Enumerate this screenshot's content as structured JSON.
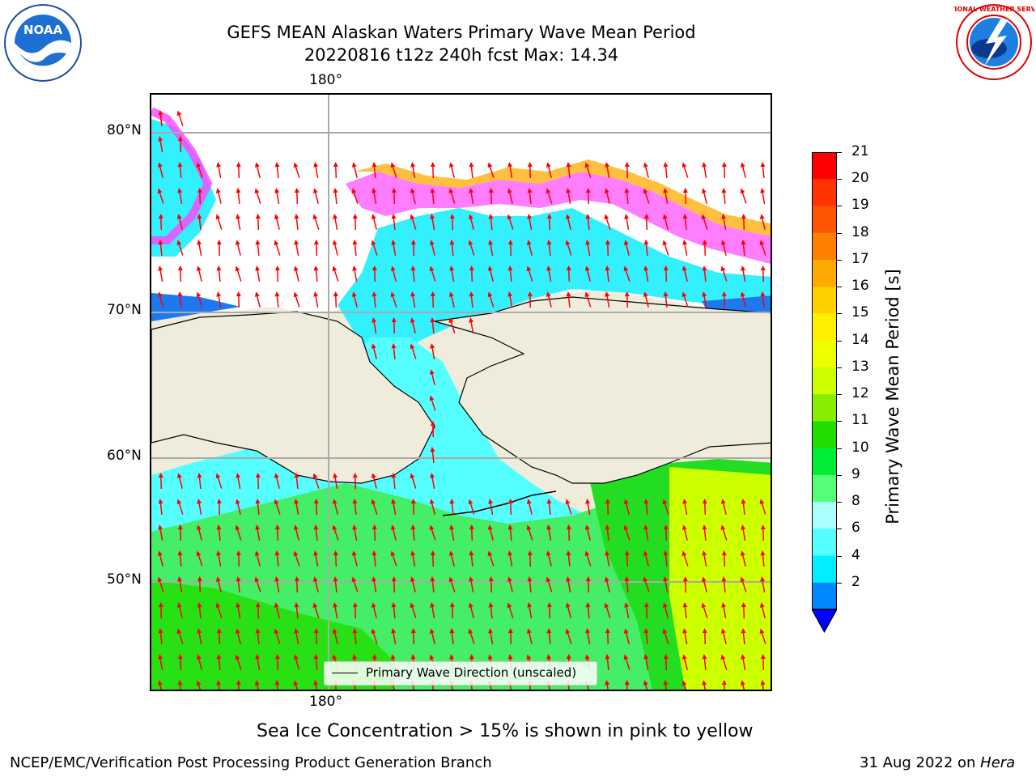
{
  "header": {
    "title_line1": "GEFS MEAN Alaskan Waters Primary Wave Mean Period",
    "title_line2": "20220816 t12z 240h fcst   Max: 14.34"
  },
  "logos": {
    "left": {
      "name": "noaa-logo",
      "text": "NOAA"
    },
    "right": {
      "name": "nws-logo",
      "text": "NATIONAL WEATHER SERVICE"
    }
  },
  "map": {
    "region": "Alaskan Waters",
    "lon_label_top": "180°",
    "lon_label_bottom": "180°",
    "lat_labels": [
      "80°N",
      "70°N",
      "60°N",
      "50°N"
    ],
    "legend_label": "Primary Wave Direction (unscaled)",
    "colors": {
      "land": "#f0ecdc",
      "ice_low": "#ff33ff",
      "ice_high": "#ffd24d",
      "arrow": "#ff0000"
    }
  },
  "colorbar": {
    "label": "Primary Wave Mean Period [s]",
    "ticks": [
      "21",
      "20",
      "19",
      "18",
      "17",
      "16",
      "15",
      "14",
      "13",
      "12",
      "11",
      "10",
      "9",
      "8",
      "6",
      "4",
      "2"
    ],
    "colors": [
      "#ff0000",
      "#ff3300",
      "#ff5500",
      "#ff8000",
      "#ffaa00",
      "#ffd000",
      "#fff000",
      "#eeff00",
      "#ccff00",
      "#88ee00",
      "#22dd00",
      "#00ee33",
      "#55ff77",
      "#aaffff",
      "#55ffff",
      "#00eeff",
      "#0088ff"
    ],
    "extend_color": "#0000ff"
  },
  "notes": {
    "ice_note": "Sea Ice Concentration > 15% is shown in pink to yellow"
  },
  "footer": {
    "left": "NCEP/EMC/Verification Post Processing Product Generation Branch",
    "right_date": "31 Aug 2022 on ",
    "right_machine": "Hera"
  }
}
